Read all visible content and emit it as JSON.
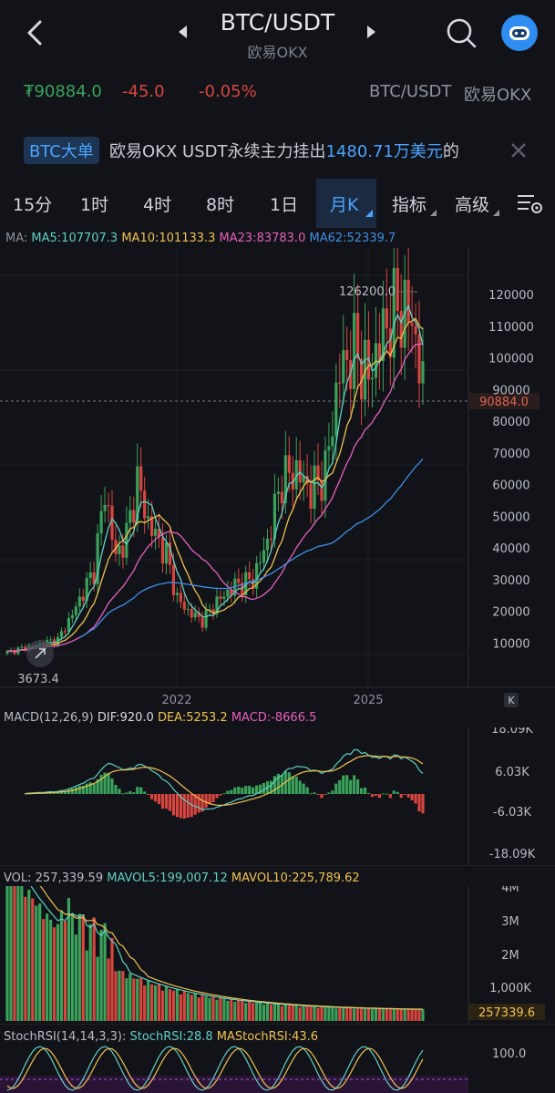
{
  "header": {
    "title": "BTC/USDT",
    "subtitle": "欧易OKX"
  },
  "price_row": {
    "last_price": "₮90884.0",
    "change": "-45.0",
    "change_pct": "-0.05%",
    "pair": "BTC/USDT",
    "exchange": "欧易OKX"
  },
  "banner": {
    "tag": "BTC大单",
    "text_prefix": "欧易OKX USDT永续主力挂出",
    "amount": "1480.71万美元",
    "text_suffix": "的"
  },
  "tabs": [
    {
      "label": "15分"
    },
    {
      "label": "1时"
    },
    {
      "label": "4时"
    },
    {
      "label": "8时"
    },
    {
      "label": "1日"
    },
    {
      "label": "月K"
    },
    {
      "label": "指标"
    },
    {
      "label": "高级"
    }
  ],
  "active_tab": "月K",
  "ma_legend": {
    "prefix": "MA:",
    "ma5": "MA5:107707.3",
    "ma10": "MA10:101133.3",
    "ma23": "MA23:83783.0",
    "ma62": "MA62:52339.7"
  },
  "main_chart": {
    "y_ticks": [
      "120000",
      "110000",
      "100000",
      "90000",
      "80000",
      "70000",
      "60000",
      "50000",
      "40000",
      "30000",
      "20000",
      "10000"
    ],
    "high_label": "126200.0",
    "low_label": "3673.4",
    "current_price_tag": "90884.0",
    "x_ticks": [
      "2022",
      "2025"
    ]
  },
  "macd": {
    "label": "MACD(12,26,9)",
    "dif": "DIF:920.0",
    "dea": "DEA:5253.2",
    "macd": "MACD:-8666.5",
    "y_ticks": [
      "18.09K",
      "6.03K",
      "-6.03K",
      "-18.09K"
    ]
  },
  "volume": {
    "label": "VOL: 257,339.59",
    "mavol5": "MAVOL5:199,007.12",
    "mavol10": "MAVOL10:225,789.62",
    "y_ticks": [
      "4M",
      "3M",
      "2M",
      "1,000K"
    ],
    "current_tag": "257339.6"
  },
  "stochrsi": {
    "label": "StochRSI(14,14,3,3):",
    "stoch": "StochRSI:28.8",
    "ma": "MAStochRSI:43.6",
    "y_ticks": [
      "100.0"
    ]
  },
  "colors": {
    "up": "#3aa25a",
    "down": "#d9453f",
    "accent": "#4aa3ff",
    "ma5": "#5fd0c4",
    "ma10": "#f2c14e",
    "ma23": "#e85fc0",
    "ma62": "#3f8fe8"
  },
  "icons": {
    "back": "chevron-left-icon",
    "search": "search-icon",
    "avatar": "robot-avatar-icon",
    "close": "close-icon",
    "settings": "chart-settings-icon"
  }
}
